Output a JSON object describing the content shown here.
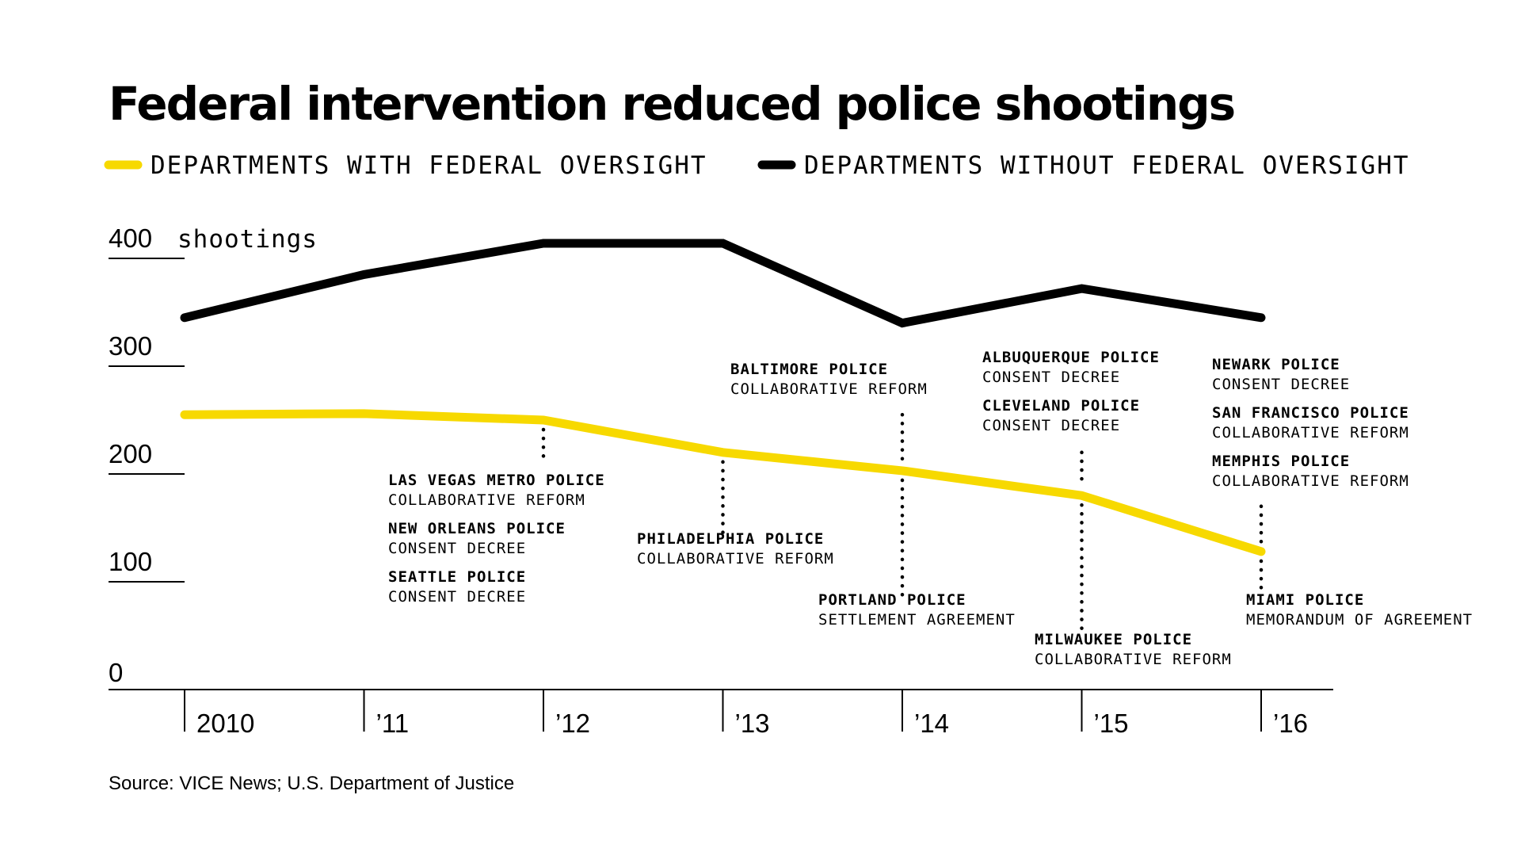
{
  "colors": {
    "with_oversight": "#f7d900",
    "without_oversight": "#000000",
    "text": "#000000"
  },
  "source": "Source: VICE News; U.S. Department of Justice",
  "chart_data": {
    "type": "line",
    "title": "Federal intervention reduced police shootings",
    "ylabel": "400 shootings",
    "ylim": [
      0,
      400
    ],
    "yticks": [
      {
        "value": 0,
        "label": "0"
      },
      {
        "value": 100,
        "label": "100"
      },
      {
        "value": 200,
        "label": "200"
      },
      {
        "value": 300,
        "label": "300"
      },
      {
        "value": 400,
        "label": "400"
      }
    ],
    "x": [
      2010,
      2011,
      2012,
      2013,
      2014,
      2015,
      2016
    ],
    "xtick_labels": [
      "2010",
      "’11",
      "’12",
      "’13",
      "’14",
      "’15",
      "’16"
    ],
    "grid": false,
    "legend_position": "top",
    "series": [
      {
        "name": "DEPARTMENTS WITH FEDERAL OVERSIGHT",
        "color": "#f7d900",
        "values": [
          255,
          256,
          250,
          220,
          203,
          180,
          128
        ]
      },
      {
        "name": "DEPARTMENTS WITHOUT FEDERAL OVERSIGHT",
        "color": "#000000",
        "values": [
          345,
          385,
          414,
          414,
          340,
          372,
          345
        ]
      }
    ],
    "annotations": [
      {
        "x": 2012,
        "anchor_value": 250,
        "leader_to": 212,
        "items": [
          {
            "name": "LAS VEGAS METRO POLICE",
            "type": "COLLABORATIVE REFORM"
          },
          {
            "name": "NEW ORLEANS POLICE",
            "type": "CONSENT DECREE"
          },
          {
            "name": "SEATTLE POLICE",
            "type": "CONSENT DECREE"
          }
        ]
      },
      {
        "x": 2013,
        "anchor_value": 220,
        "leader_to": 145,
        "items": [
          {
            "name": "PHILADELPHIA POLICE",
            "type": "COLLABORATIVE REFORM"
          }
        ]
      },
      {
        "x": 2014,
        "anchor_value": 203,
        "leader_to": 255,
        "items": [
          {
            "name": "BALTIMORE POLICE",
            "type": "COLLABORATIVE REFORM"
          }
        ]
      },
      {
        "x": 2014,
        "anchor_value": 203,
        "leader_to": 88,
        "items": [
          {
            "name": "PORTLAND POLICE",
            "type": "SETTLEMENT AGREEMENT"
          }
        ]
      },
      {
        "x": 2015,
        "anchor_value": 180,
        "leader_to": 220,
        "items": [
          {
            "name": "ALBUQUERQUE POLICE",
            "type": "CONSENT DECREE"
          },
          {
            "name": "CLEVELAND POLICE",
            "type": "CONSENT DECREE"
          }
        ]
      },
      {
        "x": 2015,
        "anchor_value": 180,
        "leader_to": 52,
        "items": [
          {
            "name": "MILWAUKEE POLICE",
            "type": "COLLABORATIVE REFORM"
          }
        ]
      },
      {
        "x": 2016,
        "anchor_value": 128,
        "leader_to": 170,
        "items": [
          {
            "name": "NEWARK POLICE",
            "type": "CONSENT DECREE"
          },
          {
            "name": "SAN FRANCISCO POLICE",
            "type": "COLLABORATIVE REFORM"
          },
          {
            "name": "MEMPHIS POLICE",
            "type": "COLLABORATIVE REFORM"
          }
        ]
      },
      {
        "x": 2016,
        "anchor_value": 128,
        "leader_to": 90,
        "items": [
          {
            "name": "MIAMI POLICE",
            "type": "MEMORANDUM OF AGREEMENT"
          }
        ]
      }
    ]
  }
}
